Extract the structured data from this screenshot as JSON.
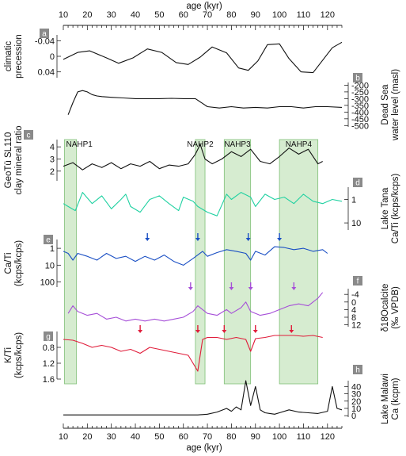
{
  "chart_data": {
    "type": "line",
    "x_axis": {
      "label": "age (kyr)",
      "range": [
        10,
        126
      ],
      "ticks": [
        10,
        20,
        30,
        40,
        50,
        60,
        70,
        80,
        90,
        100,
        110,
        120
      ],
      "tick_labels": [
        "10",
        "20",
        "30",
        "40",
        "50",
        "60",
        "70",
        "80",
        "90",
        "100",
        "110",
        "120"
      ]
    },
    "nahp": [
      {
        "label": "NAHP1",
        "start": 10.5,
        "end": 15.5
      },
      {
        "label": "NAHP2",
        "start": 65,
        "end": 69
      },
      {
        "label": "NAHP3",
        "start": 77,
        "end": 88
      },
      {
        "label": "NAHP4",
        "start": 100,
        "end": 116
      }
    ],
    "panels": [
      {
        "id": "a",
        "letter": "a",
        "ylabel": [
          "climatic",
          "precession"
        ],
        "ticks": [
          "-0.04",
          "0",
          "0.04"
        ],
        "ytick_values": [
          -0.04,
          0,
          0.04
        ],
        "ylim": [
          -0.055,
          0.055
        ],
        "inverted": true,
        "color": "#111111",
        "x": [
          10,
          16,
          21,
          28,
          33,
          39,
          45,
          51,
          57,
          62,
          67,
          72,
          78,
          83,
          87,
          91,
          95,
          100,
          104,
          109,
          114,
          118,
          122,
          126
        ],
        "y": [
          0.008,
          -0.01,
          -0.014,
          0.004,
          0.018,
          0.004,
          -0.019,
          -0.01,
          0.016,
          0.021,
          0.002,
          -0.024,
          -0.009,
          0.03,
          0.036,
          0.012,
          -0.03,
          -0.032,
          0.006,
          0.04,
          0.042,
          0.01,
          -0.022,
          -0.036
        ]
      },
      {
        "id": "b",
        "letter": "b",
        "ylabel": [
          "Dead Sea",
          "water level (masl)"
        ],
        "ticks": [
          "-200",
          "-250",
          "-300",
          "-350",
          "-400",
          "-450",
          "-500"
        ],
        "ytick_values": [
          -200,
          -250,
          -300,
          -350,
          -400,
          -450,
          -500
        ],
        "ylim": [
          -510,
          -180
        ],
        "color": "#111111",
        "x": [
          12,
          14,
          16,
          18,
          20,
          22,
          24,
          26,
          30,
          35,
          40,
          45,
          50,
          55,
          60,
          65,
          70,
          75,
          80,
          85,
          90,
          95,
          100,
          105,
          110,
          115,
          120,
          126
        ],
        "y": [
          -420,
          -330,
          -250,
          -240,
          -250,
          -270,
          -280,
          -285,
          -290,
          -295,
          -300,
          -300,
          -300,
          -298,
          -300,
          -300,
          -360,
          -370,
          -360,
          -370,
          -365,
          -370,
          -360,
          -360,
          -370,
          -360,
          -360,
          -365
        ]
      },
      {
        "id": "c",
        "letter": "c",
        "ylabel": [
          "GeoTü SL110",
          "clay mineral ratio"
        ],
        "ticks": [
          "4",
          "3",
          "2"
        ],
        "ytick_values": [
          4,
          3,
          2
        ],
        "ylim": [
          1.2,
          4.6
        ],
        "color": "#111111",
        "x": [
          10,
          14,
          18,
          22,
          26,
          30,
          34,
          38,
          42,
          46,
          50,
          54,
          58,
          62,
          65,
          67,
          69,
          72,
          76,
          80,
          84,
          88,
          92,
          96,
          100,
          104,
          108,
          112,
          116,
          118
        ],
        "y": [
          2.4,
          2.7,
          2.1,
          2.6,
          2.3,
          2.7,
          2.2,
          2.6,
          2.4,
          2.8,
          2.2,
          2.5,
          2.4,
          2.6,
          3.4,
          4.2,
          3.0,
          2.6,
          3.0,
          3.6,
          3.2,
          3.8,
          2.8,
          2.6,
          3.2,
          3.9,
          3.4,
          3.8,
          2.6,
          2.8
        ]
      },
      {
        "id": "d",
        "letter": "d",
        "ylabel": [
          "Lake Tana",
          "Ca/Ti (kcps/kcps)"
        ],
        "ticks": [
          "1",
          "10"
        ],
        "ytick_values": [
          1,
          10
        ],
        "ylim": [
          0.3,
          20
        ],
        "log": true,
        "inverted": true,
        "color": "#1fd1a1",
        "x": [
          10,
          12,
          15,
          18,
          22,
          26,
          30,
          34,
          36,
          38,
          42,
          46,
          50,
          54,
          58,
          60,
          64,
          66,
          70,
          74,
          78,
          80,
          84,
          88,
          90,
          94,
          98,
          102,
          106,
          110,
          114,
          118,
          122,
          126
        ],
        "y": [
          1.5,
          2.0,
          3.0,
          0.5,
          1.5,
          0.7,
          2.5,
          1.0,
          0.6,
          2.0,
          3.5,
          1.0,
          0.7,
          1.5,
          3.0,
          0.8,
          1.2,
          2.0,
          3.5,
          5.0,
          0.6,
          1.0,
          0.5,
          0.8,
          2.0,
          0.6,
          1.0,
          0.8,
          1.5,
          0.6,
          1.2,
          1.5,
          1.0,
          1.2
        ]
      },
      {
        "id": "e",
        "letter": "e",
        "ylabel": [
          "Ca/Ti",
          "(kcps/kcps)"
        ],
        "ticks": [
          "1",
          "10",
          "100"
        ],
        "ytick_values": [
          1,
          10,
          100
        ],
        "ylim": [
          0.3,
          200
        ],
        "log": true,
        "inverted": true,
        "color": "#1a4fc4",
        "x": [
          10,
          12,
          14,
          16,
          20,
          24,
          28,
          32,
          36,
          40,
          44,
          48,
          52,
          56,
          60,
          64,
          68,
          70,
          74,
          78,
          82,
          86,
          88,
          90,
          94,
          98,
          102,
          106,
          110,
          114,
          118,
          120
        ],
        "y": [
          1.5,
          2.0,
          5.0,
          2.0,
          3.0,
          5.0,
          2.0,
          4.0,
          3.0,
          6.0,
          3.0,
          5.0,
          2.5,
          6.0,
          10.0,
          4.0,
          1.5,
          3.0,
          1.8,
          1.2,
          1.5,
          2.0,
          5.0,
          1.5,
          2.5,
          0.8,
          0.9,
          1.2,
          1.0,
          1.5,
          1.2,
          2.0
        ]
      },
      {
        "id": "f",
        "letter": "f",
        "ylabel": [
          "δ18Ocalcite",
          "(‰ VPDB)"
        ],
        "ticks": [
          "-4",
          "0",
          "4",
          "8",
          "12"
        ],
        "ytick_values": [
          -4,
          0,
          4,
          8,
          12
        ],
        "ylim": [
          -7,
          13
        ],
        "inverted": true,
        "color": "#a64fd8",
        "x": [
          12,
          14,
          16,
          20,
          24,
          28,
          32,
          36,
          40,
          44,
          48,
          52,
          56,
          60,
          64,
          66,
          68,
          70,
          74,
          78,
          80,
          84,
          86,
          88,
          92,
          96,
          100,
          104,
          108,
          112,
          116,
          118
        ],
        "y": [
          6,
          2,
          5,
          7,
          6,
          9,
          8,
          10,
          9,
          10,
          9,
          10,
          9,
          8,
          5,
          2,
          4,
          6,
          7,
          4,
          6,
          3,
          0,
          5,
          7,
          6,
          4,
          2,
          1,
          2,
          -2,
          -5
        ]
      },
      {
        "id": "g",
        "letter": "g",
        "ylabel": [
          "K/Ti",
          "(kcps/kcps)"
        ],
        "ticks": [
          "0.8",
          "1.2",
          "1.6"
        ],
        "ytick_values": [
          0.8,
          1.2,
          1.6
        ],
        "ylim": [
          0.4,
          1.6
        ],
        "inverted": true,
        "color": "#e01c3a",
        "x": [
          10,
          14,
          18,
          22,
          26,
          30,
          34,
          38,
          42,
          46,
          50,
          54,
          58,
          62,
          64,
          66,
          68,
          70,
          74,
          78,
          82,
          86,
          88,
          90,
          94,
          98,
          102,
          106,
          110,
          114,
          118
        ],
        "y": [
          0.6,
          0.62,
          0.7,
          0.8,
          0.75,
          0.8,
          0.9,
          0.85,
          0.95,
          0.8,
          0.85,
          0.9,
          0.95,
          1.0,
          1.2,
          1.4,
          0.6,
          0.55,
          0.55,
          0.6,
          0.55,
          0.6,
          0.9,
          0.58,
          0.55,
          0.5,
          0.5,
          0.5,
          0.52,
          0.5,
          0.55
        ]
      },
      {
        "id": "h",
        "letter": "h",
        "ylabel": [
          "Lake Malawi",
          "Ca (kcpm)"
        ],
        "ticks": [
          "40",
          "30",
          "20",
          "10",
          "0"
        ],
        "ytick_values": [
          40,
          30,
          20,
          10,
          0
        ],
        "ylim": [
          -2,
          48
        ],
        "color": "#111111",
        "x": [
          10,
          20,
          30,
          40,
          50,
          60,
          66,
          70,
          74,
          78,
          80,
          82,
          84,
          86,
          88,
          90,
          92,
          94,
          96,
          98,
          100,
          104,
          108,
          112,
          116,
          120,
          122,
          124,
          126
        ],
        "y": [
          1,
          1,
          1,
          1,
          1,
          1,
          1,
          2,
          5,
          10,
          6,
          12,
          8,
          48,
          14,
          40,
          8,
          4,
          3,
          2,
          4,
          8,
          5,
          4,
          3,
          6,
          40,
          10,
          8
        ]
      }
    ],
    "arrows": [
      {
        "panel": "e",
        "color": "#1a4fc4",
        "x": [
          45,
          66,
          87,
          100
        ]
      },
      {
        "panel": "f",
        "color": "#a64fd8",
        "x": [
          63,
          80,
          88,
          106
        ]
      },
      {
        "panel": "g",
        "color": "#e01c3a",
        "x": [
          42,
          66,
          77,
          90,
          105
        ]
      }
    ]
  }
}
